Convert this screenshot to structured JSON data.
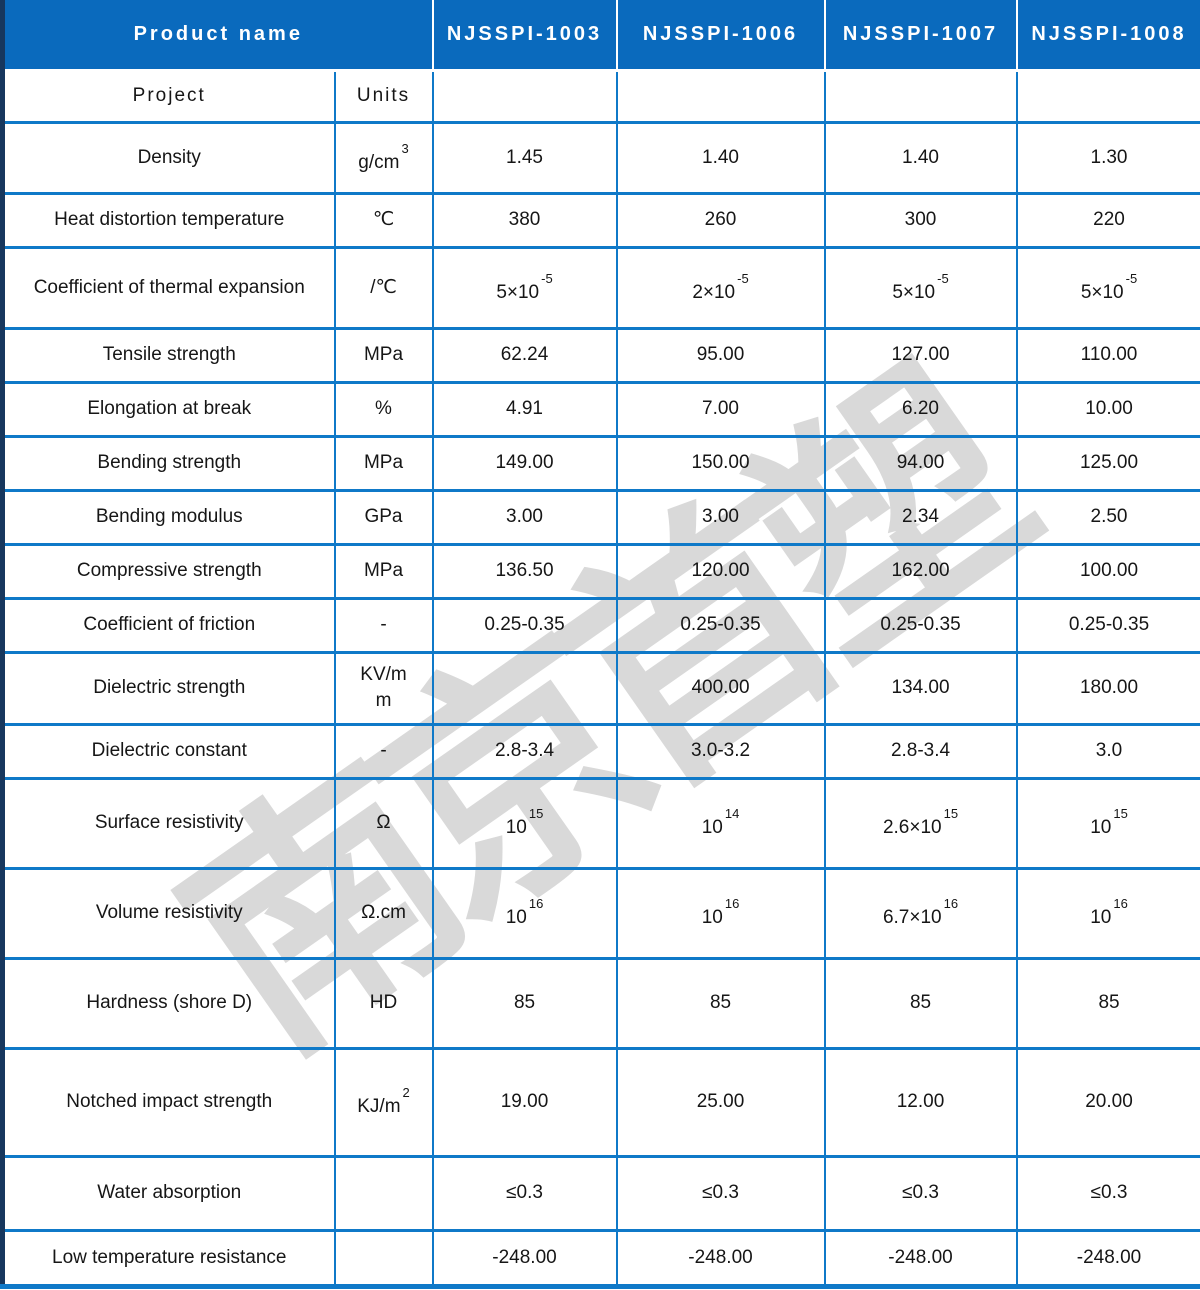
{
  "table": {
    "header": {
      "product_name": "Product name",
      "products": [
        "NJSSPI-1003",
        "NJSSPI-1006",
        "NJSSPI-1007",
        "NJSSPI-1008"
      ]
    },
    "subheader": {
      "project": "Project",
      "units": "Units"
    },
    "rows": [
      {
        "property": "Density",
        "unit": "g/cm^3^",
        "values": [
          "1.45",
          "1.40",
          "1.40",
          "1.30"
        ]
      },
      {
        "property": "Heat distortion temperature",
        "unit": "℃",
        "values": [
          "380",
          "260",
          "300",
          "220"
        ]
      },
      {
        "property": "Coefficient of thermal expansion",
        "unit": "/℃",
        "values": [
          "5×10^-5^",
          "2×10^-5^",
          "5×10^-5^",
          "5×10^-5^"
        ]
      },
      {
        "property": "Tensile strength",
        "unit": "MPa",
        "values": [
          "62.24",
          "95.00",
          "127.00",
          "110.00"
        ]
      },
      {
        "property": "Elongation at break",
        "unit": "%",
        "values": [
          "4.91",
          "7.00",
          "6.20",
          "10.00"
        ]
      },
      {
        "property": "Bending strength",
        "unit": "MPa",
        "values": [
          "149.00",
          "150.00",
          "94.00",
          "125.00"
        ]
      },
      {
        "property": "Bending modulus",
        "unit": "GPa",
        "values": [
          "3.00",
          "3.00",
          "2.34",
          "2.50"
        ]
      },
      {
        "property": "Compressive strength",
        "unit": "MPa",
        "values": [
          "136.50",
          "120.00",
          "162.00",
          "100.00"
        ]
      },
      {
        "property": "Coefficient of friction",
        "unit": "-",
        "values": [
          "0.25-0.35",
          "0.25-0.35",
          "0.25-0.35",
          "0.25-0.35"
        ]
      },
      {
        "property": "Dielectric strength",
        "unit": "KV/m\nm",
        "values": [
          "",
          "400.00",
          "134.00",
          "180.00"
        ]
      },
      {
        "property": "Dielectric constant",
        "unit": "-",
        "values": [
          "2.8-3.4",
          "3.0-3.2",
          "2.8-3.4",
          "3.0"
        ]
      },
      {
        "property": "Surface resistivity",
        "unit": "Ω",
        "values": [
          "10^15^",
          "10^14^",
          "2.6×10^15^",
          "10^15^"
        ]
      },
      {
        "property": "Volume resistivity",
        "unit": "Ω.cm",
        "values": [
          "10^16^",
          "10^16^",
          "6.7×10^16^",
          "10^16^"
        ]
      },
      {
        "property": "Hardness (shore D)",
        "unit": "HD",
        "values": [
          "85",
          "85",
          "85",
          "85"
        ]
      },
      {
        "property": "Notched impact strength",
        "unit": "KJ/m^2^",
        "values": [
          "19.00",
          "25.00",
          "12.00",
          "20.00"
        ]
      },
      {
        "property": "Water absorption",
        "unit": "",
        "values": [
          "≤0.3",
          "≤0.3",
          "≤0.3",
          "≤0.3"
        ]
      },
      {
        "property": "Low temperature resistance",
        "unit": "",
        "values": [
          "-248.00",
          "-248.00",
          "-248.00",
          "-248.00"
        ]
      }
    ]
  },
  "watermark": "南京首塑",
  "colors": {
    "header_blue": "#0a6abd",
    "grid_blue": "#0f79c8",
    "outer_navy": "#17375e",
    "watermark_gray": "#d9d9d9"
  }
}
